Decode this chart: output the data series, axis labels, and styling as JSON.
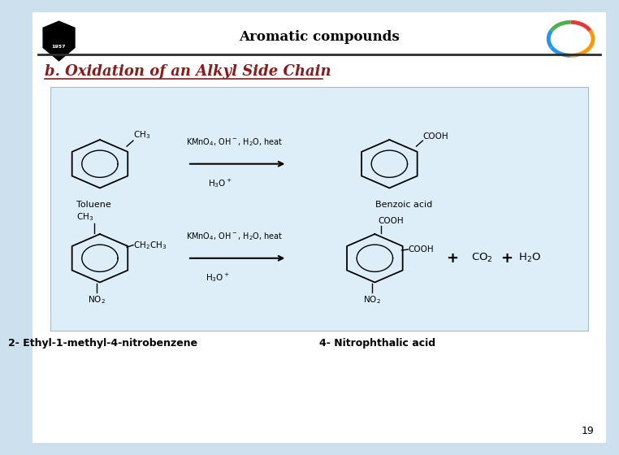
{
  "title": "Aromatic compounds",
  "subtitle": "b. Oxidation of an Alkyl Side Chain",
  "label_left": "2- Ethyl-1-methyl-4-nitrobenzene",
  "label_right": "4- Nitrophthalic acid",
  "label_toluene": "Toluene",
  "label_benzoic": "Benzoic acid",
  "page_number": "19",
  "bg_color": "#cce0ee",
  "slide_bg": "#ffffff",
  "box_bg": "#ddeef8",
  "title_color": "#000000",
  "subtitle_color": "#8B1A1A",
  "label_color": "#000000",
  "horizontal_line_color": "#2c2c2c"
}
